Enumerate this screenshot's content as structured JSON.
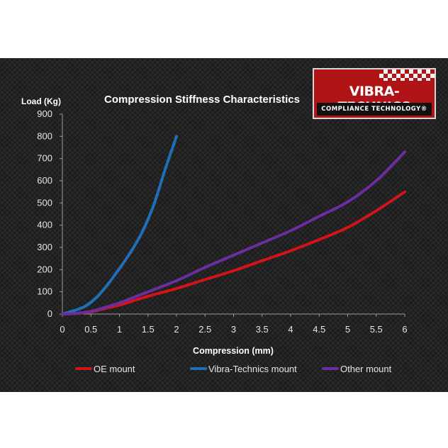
{
  "chart_data": {
    "type": "line",
    "title": "Compression Stiffness Characteristics",
    "xlabel": "Compression (mm)",
    "ylabel": "Load (Kg)",
    "xlim": [
      0,
      6
    ],
    "ylim": [
      0,
      900
    ],
    "xticks": [
      "0",
      "0.5",
      "1",
      "1.5",
      "2",
      "2.5",
      "3",
      "3.5",
      "4",
      "4.5",
      "5",
      "5.5",
      "6"
    ],
    "yticks": [
      "0",
      "100",
      "200",
      "300",
      "400",
      "500",
      "600",
      "700",
      "800",
      "900"
    ],
    "grid": false,
    "legend_position": "bottom",
    "series": [
      {
        "name": "OE mount",
        "color": "#d01418",
        "x": [
          0,
          0.25,
          0.5,
          0.75,
          1,
          1.25,
          1.5,
          2,
          2.5,
          3,
          3.5,
          4,
          4.5,
          5,
          5.5,
          6
        ],
        "y": [
          0,
          3,
          10,
          25,
          40,
          60,
          80,
          115,
          155,
          195,
          240,
          285,
          335,
          390,
          465,
          550
        ]
      },
      {
        "name": "Vibra-Technics mount",
        "color": "#1f6fb8",
        "x": [
          0,
          0.2,
          0.4,
          0.6,
          0.8,
          1.0,
          1.2,
          1.4,
          1.6,
          1.8,
          2.0
        ],
        "y": [
          0,
          15,
          35,
          75,
          135,
          205,
          280,
          370,
          490,
          650,
          800
        ]
      },
      {
        "name": "Other mount",
        "color": "#6a2ea0",
        "x": [
          0,
          0.25,
          0.5,
          0.75,
          1,
          1.25,
          1.5,
          2,
          2.5,
          3,
          3.5,
          4,
          4.5,
          5,
          5.5,
          6
        ],
        "y": [
          0,
          3,
          12,
          30,
          50,
          75,
          100,
          150,
          210,
          265,
          320,
          375,
          440,
          505,
          600,
          730
        ]
      }
    ]
  },
  "logo": {
    "brand": "VIBRA-TECHNICS",
    "tagline": "COMPLIANCE TECHNOLOGY®"
  }
}
